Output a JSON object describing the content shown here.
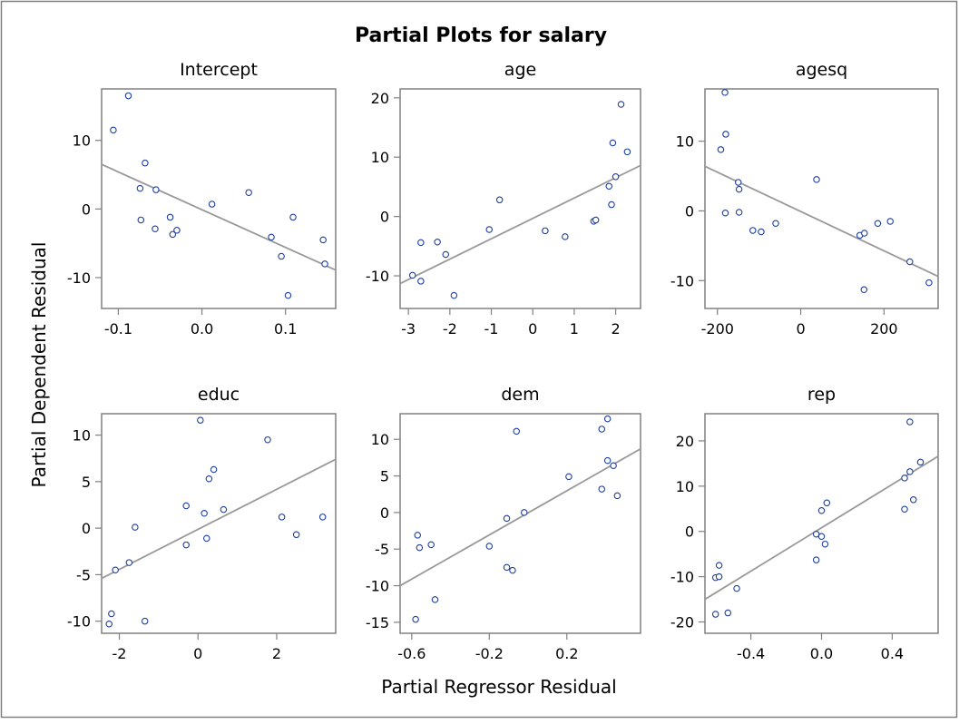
{
  "title": "Partial Plots for salary",
  "xlabel": "Partial Regressor Residual",
  "ylabel": "Partial Dependent Residual",
  "marker_color": "#1f3fa0",
  "line_color": "#999999",
  "frame_color": "#808080",
  "chart_data": [
    {
      "type": "scatter",
      "title": "Intercept",
      "xlim": [
        -0.12,
        0.16
      ],
      "ylim": [
        -14.5,
        17.5
      ],
      "xticks": [
        -0.1,
        0.0,
        0.1
      ],
      "xtick_labels": [
        "-0.1",
        "0.0",
        "0.1"
      ],
      "yticks": [
        -10,
        0,
        10
      ],
      "ytick_labels": [
        "-10",
        "0",
        "10"
      ],
      "fit_line": [
        [
          -0.12,
          6.5
        ],
        [
          0.16,
          -8.9
        ]
      ],
      "points": [
        {
          "x": -0.106,
          "y": 11.5
        },
        {
          "x": -0.088,
          "y": 16.5
        },
        {
          "x": -0.068,
          "y": 6.7
        },
        {
          "x": -0.074,
          "y": 3.0
        },
        {
          "x": -0.073,
          "y": -1.6
        },
        {
          "x": -0.055,
          "y": 2.8
        },
        {
          "x": -0.056,
          "y": -2.9
        },
        {
          "x": -0.038,
          "y": -1.2
        },
        {
          "x": -0.035,
          "y": -3.7
        },
        {
          "x": -0.03,
          "y": -3.1
        },
        {
          "x": 0.012,
          "y": 0.7
        },
        {
          "x": 0.056,
          "y": 2.4
        },
        {
          "x": 0.083,
          "y": -4.1
        },
        {
          "x": 0.095,
          "y": -6.9
        },
        {
          "x": 0.103,
          "y": -12.6
        },
        {
          "x": 0.109,
          "y": -1.2
        },
        {
          "x": 0.145,
          "y": -4.5
        },
        {
          "x": 0.147,
          "y": -8.0
        }
      ]
    },
    {
      "type": "scatter",
      "title": "age",
      "xlim": [
        -3.2,
        2.6
      ],
      "ylim": [
        -15.5,
        21.5
      ],
      "xticks": [
        -3,
        -2,
        -1,
        0,
        1,
        2
      ],
      "xtick_labels": [
        "-3",
        "-2",
        "-1",
        "0",
        "1",
        "2"
      ],
      "yticks": [
        -10,
        0,
        10,
        20
      ],
      "ytick_labels": [
        "-10",
        "0",
        "10",
        "20"
      ],
      "fit_line": [
        [
          -3.2,
          -11.3
        ],
        [
          2.6,
          8.6
        ]
      ],
      "points": [
        {
          "x": -2.9,
          "y": -9.9
        },
        {
          "x": -2.7,
          "y": -4.4
        },
        {
          "x": -2.7,
          "y": -10.9
        },
        {
          "x": -2.3,
          "y": -4.3
        },
        {
          "x": -2.1,
          "y": -6.4
        },
        {
          "x": -1.9,
          "y": -13.3
        },
        {
          "x": -1.05,
          "y": -2.2
        },
        {
          "x": -0.8,
          "y": 2.8
        },
        {
          "x": 0.3,
          "y": -2.4
        },
        {
          "x": 0.78,
          "y": -3.4
        },
        {
          "x": 1.47,
          "y": -0.8
        },
        {
          "x": 1.52,
          "y": -0.6
        },
        {
          "x": 1.84,
          "y": 5.1
        },
        {
          "x": 1.9,
          "y": 2.0
        },
        {
          "x": 1.93,
          "y": 12.4
        },
        {
          "x": 2.0,
          "y": 6.7
        },
        {
          "x": 2.13,
          "y": 18.9
        },
        {
          "x": 2.28,
          "y": 10.9
        }
      ]
    },
    {
      "type": "scatter",
      "title": "agesq",
      "xlim": [
        -230,
        330
      ],
      "ylim": [
        -14,
        17.5
      ],
      "xticks": [
        -200,
        0,
        200
      ],
      "xtick_labels": [
        "-200",
        "0",
        "200"
      ],
      "yticks": [
        -10,
        0,
        10
      ],
      "ytick_labels": [
        "-10",
        "0",
        "10"
      ],
      "fit_line": [
        [
          -230,
          6.4
        ],
        [
          330,
          -9.4
        ]
      ],
      "points": [
        {
          "x": -192,
          "y": 8.8
        },
        {
          "x": -182,
          "y": 17.0
        },
        {
          "x": -180,
          "y": 11.0
        },
        {
          "x": -181,
          "y": -0.3
        },
        {
          "x": -150,
          "y": 4.1
        },
        {
          "x": -148,
          "y": 3.1
        },
        {
          "x": -148,
          "y": -0.2
        },
        {
          "x": -115,
          "y": -2.8
        },
        {
          "x": -95,
          "y": -3.0
        },
        {
          "x": -60,
          "y": -1.8
        },
        {
          "x": 38,
          "y": 4.5
        },
        {
          "x": 142,
          "y": -3.5
        },
        {
          "x": 153,
          "y": -3.2
        },
        {
          "x": 152,
          "y": -11.3
        },
        {
          "x": 185,
          "y": -1.8
        },
        {
          "x": 215,
          "y": -1.5
        },
        {
          "x": 262,
          "y": -7.3
        },
        {
          "x": 308,
          "y": -10.3
        }
      ]
    },
    {
      "type": "scatter",
      "title": "educ",
      "xlim": [
        -2.45,
        3.5
      ],
      "ylim": [
        -11.3,
        12.3
      ],
      "xticks": [
        -2,
        0,
        2
      ],
      "xtick_labels": [
        "-2",
        "0",
        "2"
      ],
      "yticks": [
        -10,
        -5,
        0,
        5,
        10
      ],
      "ytick_labels": [
        "-10",
        "-5",
        "0",
        "5",
        "10"
      ],
      "fit_line": [
        [
          -2.45,
          -5.4
        ],
        [
          3.5,
          7.4
        ]
      ],
      "points": [
        {
          "x": -2.26,
          "y": -10.3
        },
        {
          "x": -2.2,
          "y": -9.2
        },
        {
          "x": -2.1,
          "y": -4.5
        },
        {
          "x": -1.75,
          "y": -3.7
        },
        {
          "x": -1.6,
          "y": 0.1
        },
        {
          "x": -1.35,
          "y": -10.0
        },
        {
          "x": -0.3,
          "y": 2.4
        },
        {
          "x": -0.3,
          "y": -1.8
        },
        {
          "x": 0.06,
          "y": 11.6
        },
        {
          "x": 0.16,
          "y": 1.6
        },
        {
          "x": 0.22,
          "y": -1.1
        },
        {
          "x": 0.28,
          "y": 5.3
        },
        {
          "x": 0.4,
          "y": 6.3
        },
        {
          "x": 0.65,
          "y": 2.0
        },
        {
          "x": 1.77,
          "y": 9.5
        },
        {
          "x": 2.13,
          "y": 1.2
        },
        {
          "x": 2.5,
          "y": -0.7
        },
        {
          "x": 3.17,
          "y": 1.2
        }
      ]
    },
    {
      "type": "scatter",
      "title": "dem",
      "xlim": [
        -0.66,
        0.58
      ],
      "ylim": [
        -16.5,
        13.5
      ],
      "xticks": [
        -0.6,
        -0.2,
        0.2
      ],
      "xtick_labels": [
        "-0.6",
        "-0.2",
        "0.2"
      ],
      "yticks": [
        -15,
        -10,
        -5,
        0,
        5,
        10
      ],
      "ytick_labels": [
        "-15",
        "-10",
        "-5",
        "0",
        "5",
        "10"
      ],
      "fit_line": [
        [
          -0.66,
          -10.0
        ],
        [
          0.58,
          8.7
        ]
      ],
      "points": [
        {
          "x": -0.58,
          "y": -14.6
        },
        {
          "x": -0.57,
          "y": -3.1
        },
        {
          "x": -0.56,
          "y": -4.8
        },
        {
          "x": -0.5,
          "y": -4.4
        },
        {
          "x": -0.48,
          "y": -11.9
        },
        {
          "x": -0.2,
          "y": -4.6
        },
        {
          "x": -0.11,
          "y": -7.5
        },
        {
          "x": -0.11,
          "y": -0.8
        },
        {
          "x": -0.08,
          "y": -7.9
        },
        {
          "x": -0.06,
          "y": 11.1
        },
        {
          "x": -0.02,
          "y": 0.0
        },
        {
          "x": 0.21,
          "y": 4.9
        },
        {
          "x": 0.38,
          "y": 3.2
        },
        {
          "x": 0.38,
          "y": 11.4
        },
        {
          "x": 0.41,
          "y": 12.8
        },
        {
          "x": 0.41,
          "y": 7.1
        },
        {
          "x": 0.44,
          "y": 6.4
        },
        {
          "x": 0.46,
          "y": 2.3
        }
      ]
    },
    {
      "type": "scatter",
      "title": "rep",
      "xlim": [
        -0.66,
        0.66
      ],
      "ylim": [
        -22.5,
        26.0
      ],
      "xticks": [
        -0.4,
        0.0,
        0.4
      ],
      "xtick_labels": [
        "-0.4",
        "0.0",
        "0.4"
      ],
      "yticks": [
        -20,
        -10,
        0,
        10,
        20
      ],
      "ytick_labels": [
        "-20",
        "-10",
        "0",
        "10",
        "20"
      ],
      "fit_line": [
        [
          -0.66,
          -15.0
        ],
        [
          0.66,
          16.6
        ]
      ],
      "points": [
        {
          "x": -0.6,
          "y": -18.3
        },
        {
          "x": -0.6,
          "y": -10.2
        },
        {
          "x": -0.58,
          "y": -10.0
        },
        {
          "x": -0.58,
          "y": -7.5
        },
        {
          "x": -0.53,
          "y": -18.0
        },
        {
          "x": -0.48,
          "y": -12.6
        },
        {
          "x": -0.03,
          "y": -6.3
        },
        {
          "x": -0.03,
          "y": -0.6
        },
        {
          "x": 0.0,
          "y": -1.1
        },
        {
          "x": 0.0,
          "y": 4.6
        },
        {
          "x": 0.02,
          "y": -2.8
        },
        {
          "x": 0.03,
          "y": 6.3
        },
        {
          "x": 0.47,
          "y": 4.9
        },
        {
          "x": 0.47,
          "y": 11.8
        },
        {
          "x": 0.5,
          "y": 24.2
        },
        {
          "x": 0.5,
          "y": 13.2
        },
        {
          "x": 0.52,
          "y": 7.0
        },
        {
          "x": 0.56,
          "y": 15.3
        }
      ]
    }
  ]
}
